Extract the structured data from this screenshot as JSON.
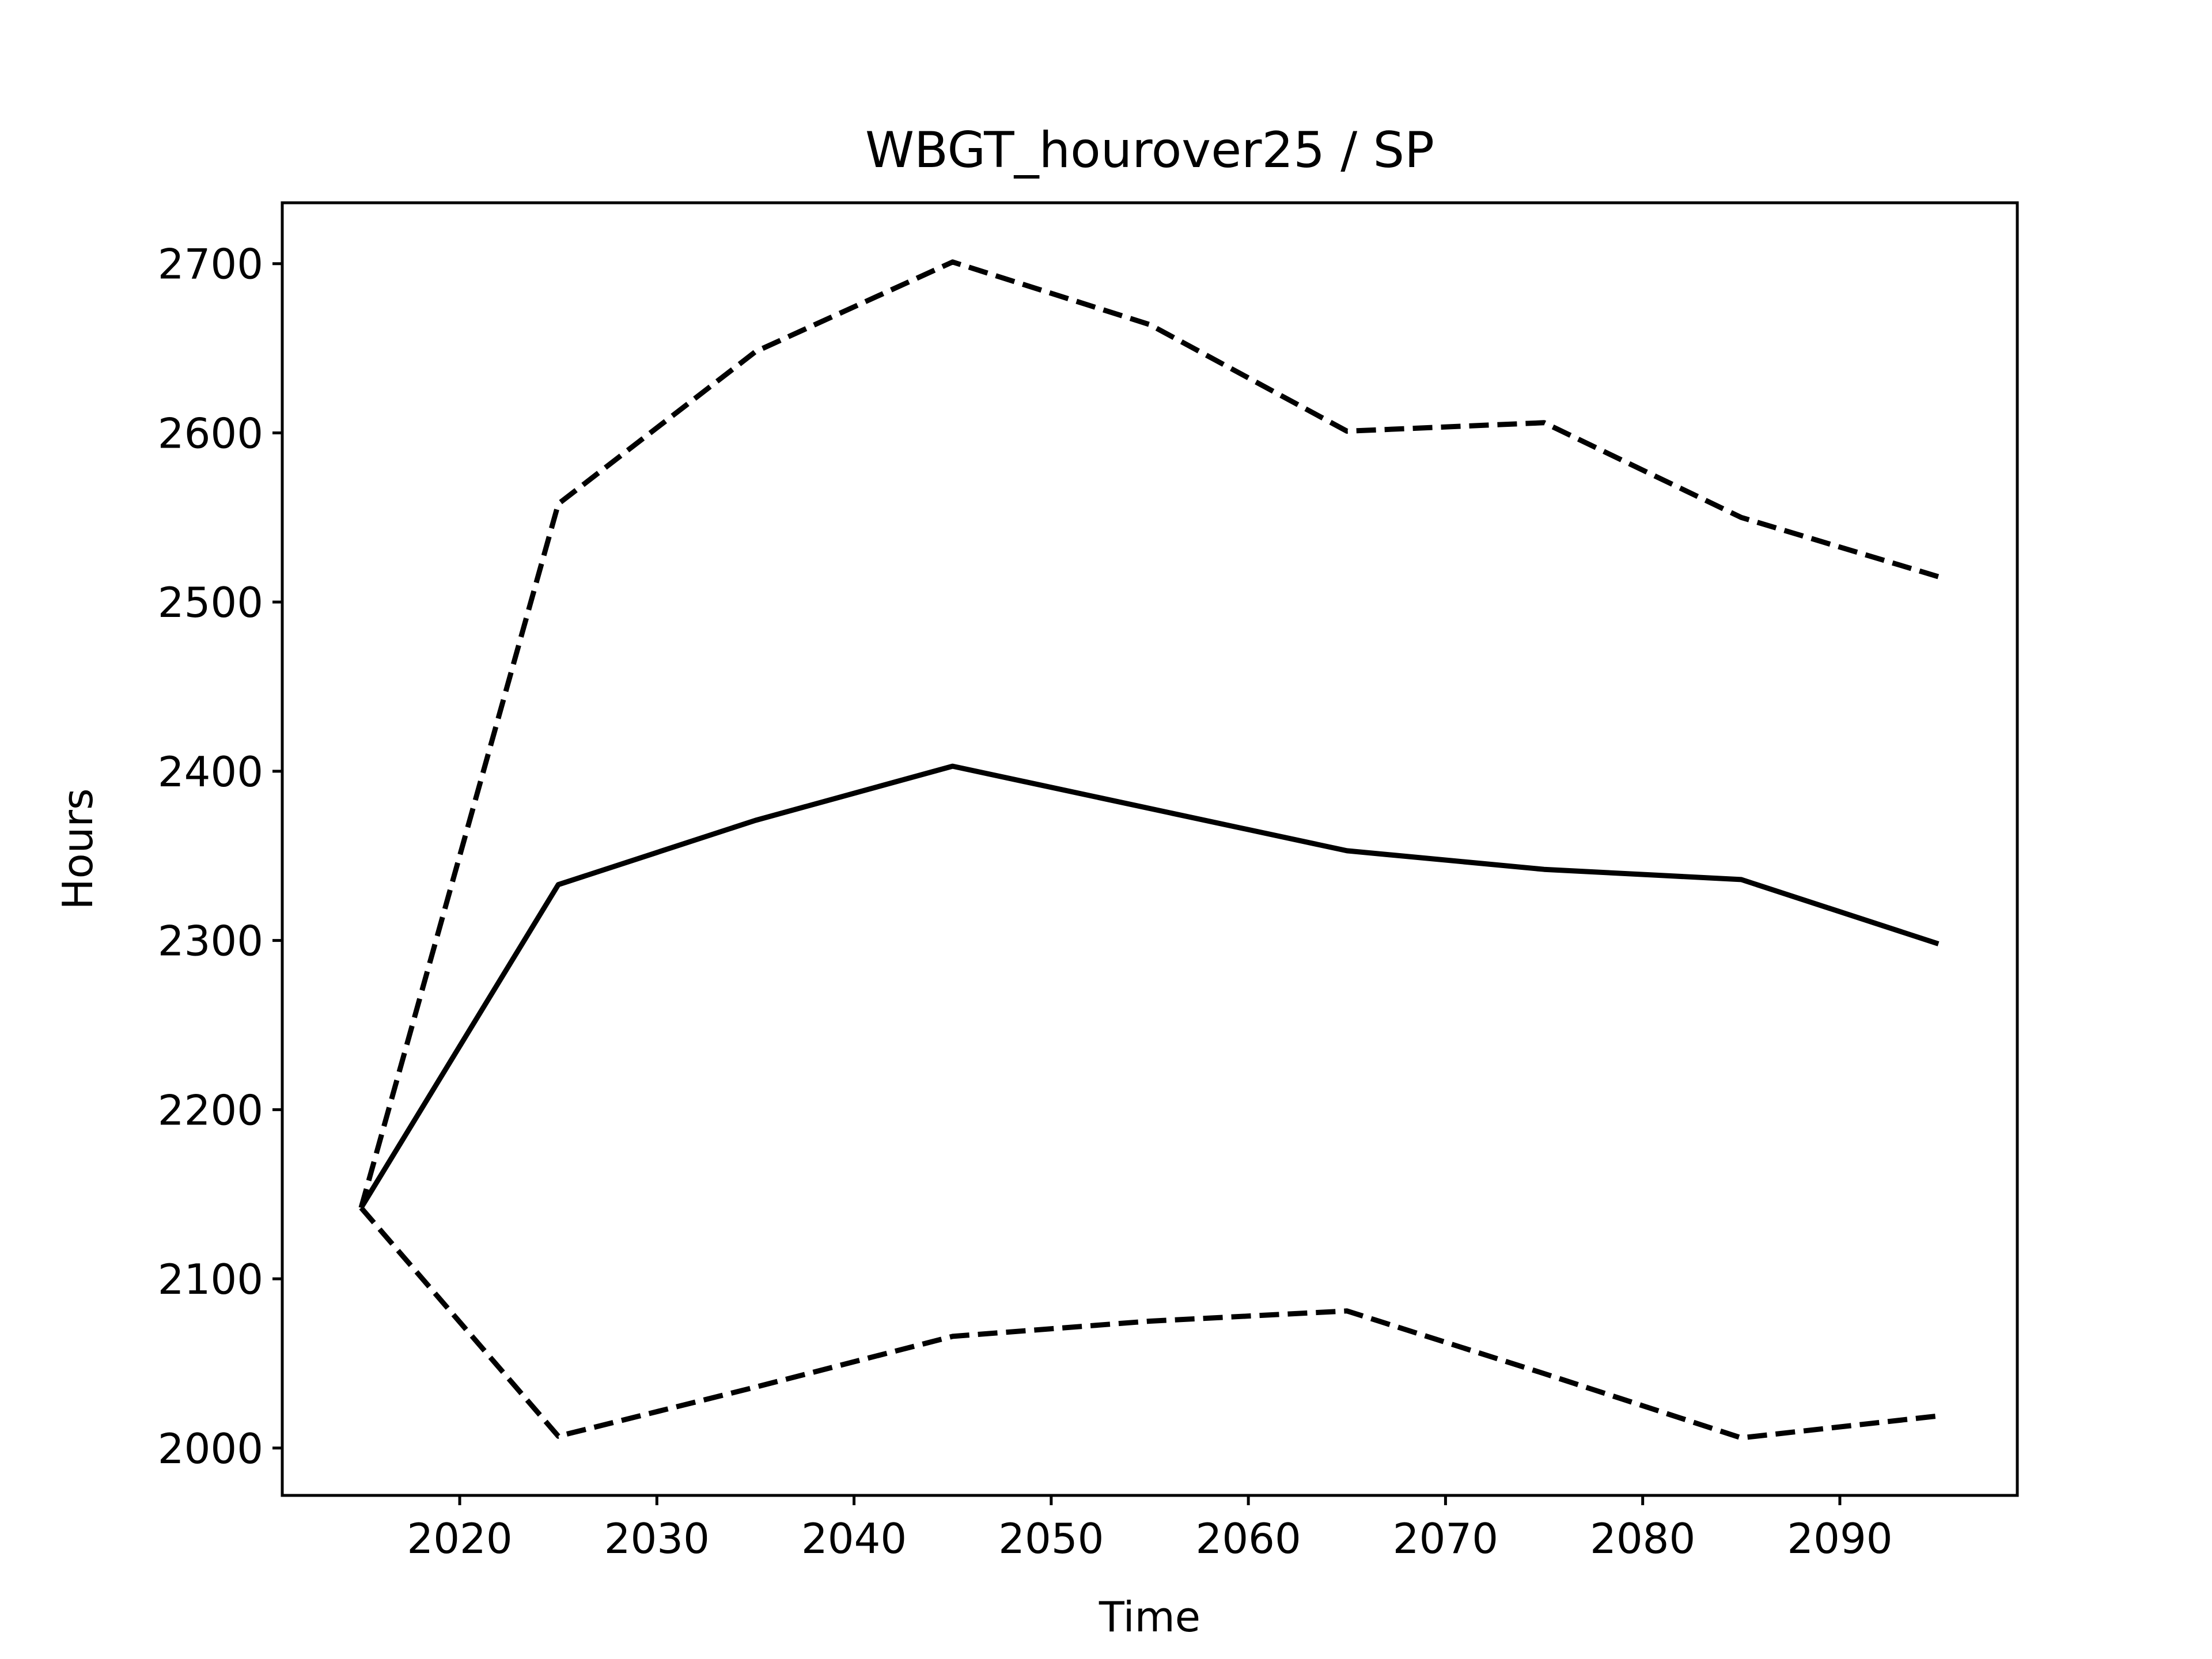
{
  "chart_data": {
    "type": "line",
    "title": "WBGT_hourover25 / SP",
    "xlabel": "Time",
    "ylabel": "Hours",
    "xlim": [
      2011,
      2099
    ],
    "ylim": [
      1972,
      2736
    ],
    "xticks": [
      2020,
      2030,
      2040,
      2050,
      2060,
      2070,
      2080,
      2090
    ],
    "yticks": [
      2000,
      2100,
      2200,
      2300,
      2400,
      2500,
      2600,
      2700
    ],
    "grid": false,
    "x": [
      2015,
      2025,
      2035,
      2045,
      2055,
      2065,
      2075,
      2085,
      2095
    ],
    "series": [
      {
        "style": "solid",
        "color": "#000000",
        "values": [
          2142,
          2333,
          2371,
          2403,
          2378,
          2353,
          2342,
          2336,
          2298
        ]
      },
      {
        "style": "dashed",
        "color": "#000000",
        "values": [
          2142,
          2558,
          2648,
          2701,
          2664,
          2601,
          2606,
          2550,
          2515
        ]
      },
      {
        "style": "dashed",
        "color": "#000000",
        "values": [
          2142,
          2007,
          2036,
          2066,
          2075,
          2081,
          2044,
          2006,
          2019
        ]
      }
    ]
  }
}
